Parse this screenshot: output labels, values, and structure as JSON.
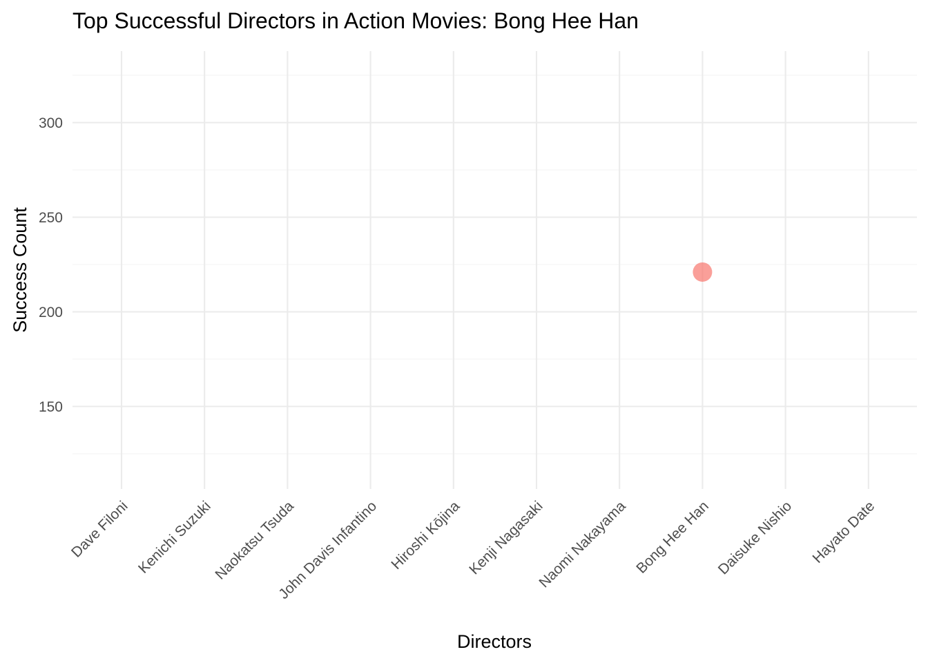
{
  "chart_data": {
    "type": "scatter",
    "title": "Top Successful Directors in Action Movies: Bong Hee Han",
    "xlabel": "Directors",
    "ylabel": "Success Count",
    "categories": [
      "Dave Filoni",
      "Kenichi Suzuki",
      "Naokatsu Tsuda",
      "John Davis Infantino",
      "Hiroshi Kōjina",
      "Kenji Nagasaki",
      "Naomi Nakayama",
      "Bong Hee Han",
      "Daisuke Nishio",
      "Hayato Date"
    ],
    "points": [
      {
        "x": "Bong Hee Han",
        "y": 221
      }
    ],
    "ylim": [
      106,
      331
    ],
    "yticks": [
      150,
      200,
      250,
      300
    ],
    "grid": true,
    "legend": "none",
    "point_color": "#f8766d"
  }
}
